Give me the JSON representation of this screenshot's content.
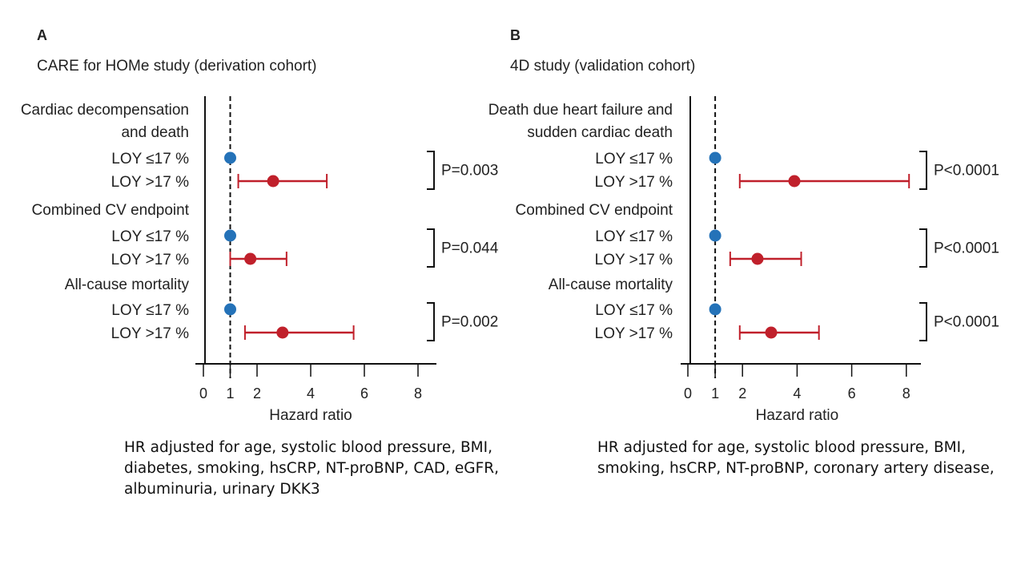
{
  "chart_data": [
    {
      "type": "forest",
      "panel_label": "A",
      "title": "CARE for HOMe study (derivation cohort)",
      "xlabel": "Hazard ratio",
      "xlim": [
        0,
        8.5
      ],
      "xticks": [
        0,
        1,
        2,
        4,
        6,
        8
      ],
      "reference_line": 1,
      "groups": [
        {
          "name_lines": [
            "Cardiac decompensation",
            "and death"
          ],
          "p_value": "P=0.003",
          "rows": [
            {
              "label": "LOY ≤17 %",
              "hr": 1.0
            },
            {
              "label": "LOY >17 %",
              "hr": 2.6,
              "ci": [
                1.3,
                4.6
              ]
            }
          ]
        },
        {
          "name_lines": [
            "Combined CV endpoint"
          ],
          "p_value": "P=0.044",
          "rows": [
            {
              "label": "LOY ≤17 %",
              "hr": 1.0
            },
            {
              "label": "LOY >17 %",
              "hr": 1.75,
              "ci": [
                1.0,
                3.1
              ]
            }
          ]
        },
        {
          "name_lines": [
            "All-cause mortality"
          ],
          "p_value": "P=0.002",
          "rows": [
            {
              "label": "LOY ≤17 %",
              "hr": 1.0
            },
            {
              "label": "LOY >17 %",
              "hr": 2.95,
              "ci": [
                1.55,
                5.6
              ]
            }
          ]
        }
      ],
      "note": "HR adjusted for age, systolic blood pressure, BMI,\ndiabetes, smoking, hsCRP, NT-proBNP, CAD, eGFR,\nalbuminuria, urinary DKK3"
    },
    {
      "type": "forest",
      "panel_label": "B",
      "title": "4D study (validation cohort)",
      "xlabel": "Hazard ratio",
      "xlim": [
        0,
        8.6
      ],
      "xticks": [
        0,
        1,
        2,
        4,
        6,
        8
      ],
      "reference_line": 1,
      "groups": [
        {
          "name_lines": [
            "Death due heart failure and",
            "sudden cardiac death"
          ],
          "p_value": "P<0.0001",
          "rows": [
            {
              "label": "LOY ≤17 %",
              "hr": 1.0
            },
            {
              "label": "LOY >17 %",
              "hr": 3.9,
              "ci": [
                1.9,
                8.1
              ]
            }
          ]
        },
        {
          "name_lines": [
            "Combined CV endpoint"
          ],
          "p_value": "P<0.0001",
          "rows": [
            {
              "label": "LOY ≤17 %",
              "hr": 1.0
            },
            {
              "label": "LOY >17 %",
              "hr": 2.55,
              "ci": [
                1.55,
                4.15
              ]
            }
          ]
        },
        {
          "name_lines": [
            "All-cause mortality"
          ],
          "p_value": "P<0.0001",
          "rows": [
            {
              "label": "LOY ≤17 %",
              "hr": 1.0
            },
            {
              "label": "LOY >17 %",
              "hr": 3.05,
              "ci": [
                1.9,
                4.8
              ]
            }
          ]
        }
      ],
      "note": "HR adjusted for age, systolic blood pressure, BMI,\nsmoking, hsCRP, NT-proBNP, coronary artery disease,"
    }
  ],
  "colors": {
    "reference_marker": "#2472b8",
    "loy_high_marker": "#c0202b",
    "axis": "#111111",
    "text": "#222222"
  }
}
